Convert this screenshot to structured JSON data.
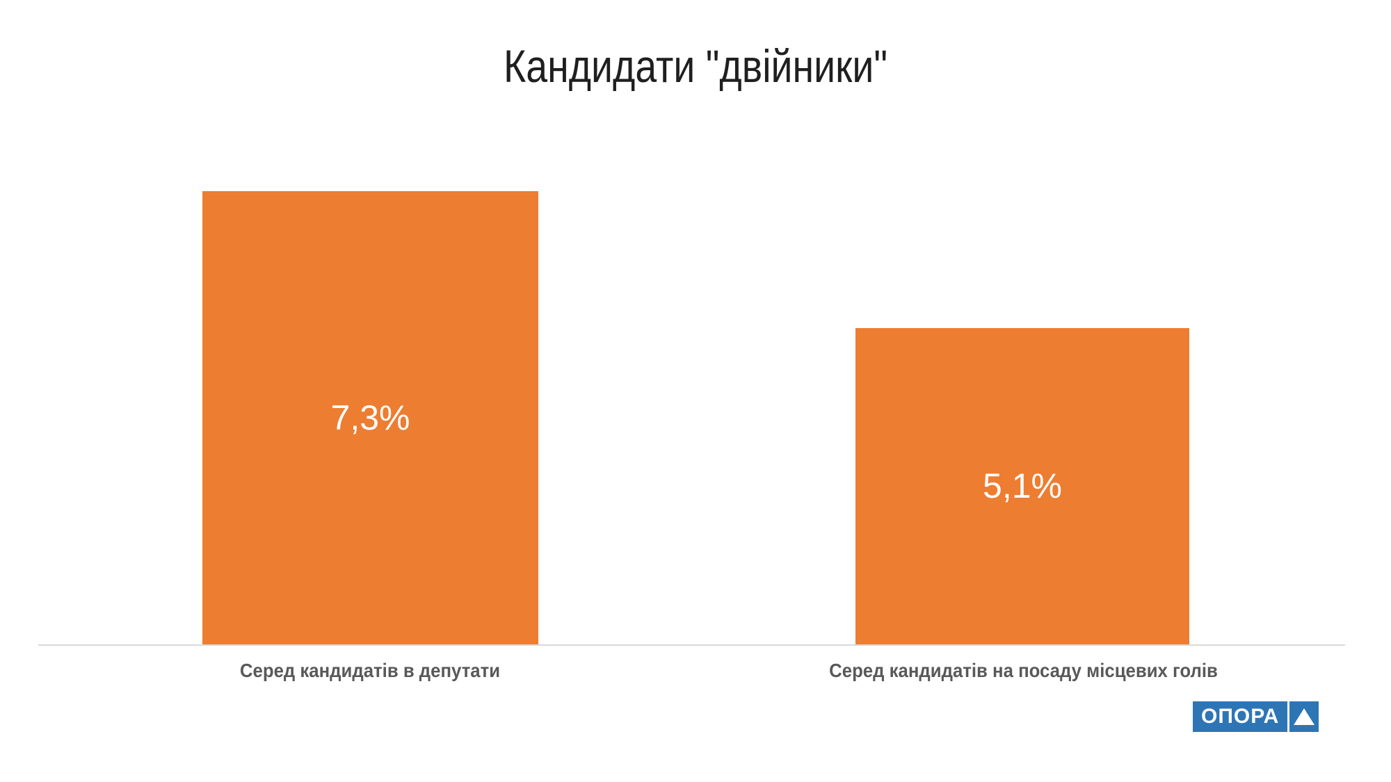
{
  "chart": {
    "title": "Кандидати \"двійники\""
  },
  "chart_data": {
    "type": "bar",
    "title": "Кандидати \"двійники\"",
    "categories": [
      "Серед кандидатів в депутати",
      "Серед кандидатів на посаду місцевих голів"
    ],
    "values": [
      7.3,
      5.1
    ],
    "value_labels": [
      "7,3%",
      "5,1%"
    ],
    "xlabel": "",
    "ylabel": "",
    "ylim": [
      0,
      8
    ],
    "grid": false,
    "legend": false,
    "label_position": "center-inside",
    "colors": {
      "bar": "#ED7D31",
      "value_label": "#FFFFFF",
      "category_label": "#595959",
      "title": "#1F1F1F",
      "axis_line": "#D8D8D8",
      "background": "#FFFFFF"
    }
  },
  "logo": {
    "text": "ОПОРА",
    "icon": "triangle-up-icon",
    "background_color": "#2E75B6",
    "foreground_color": "#FFFFFF"
  }
}
